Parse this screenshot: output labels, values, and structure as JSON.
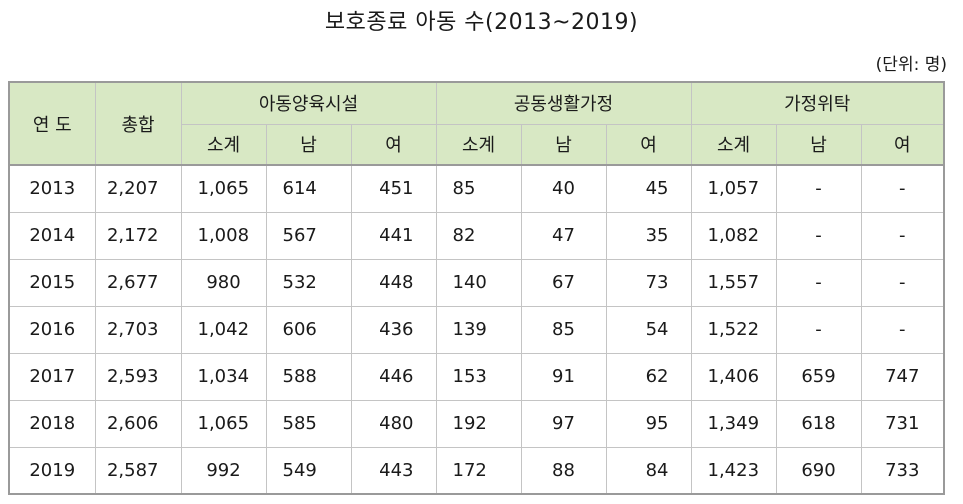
{
  "title": "보호종료 아동 수(2013~2019)",
  "unit": "(단위: 명)",
  "header": {
    "year": "연 도",
    "total": "총합",
    "group1": "아동양육시설",
    "group2": "공동생활가정",
    "group3": "가정위탁",
    "sub_total": "소계",
    "male": "남",
    "female": "여"
  },
  "rows": [
    [
      "2013",
      "2,207",
      "1,065",
      "614",
      "451",
      "85",
      "40",
      "45",
      "1,057",
      "-",
      "-"
    ],
    [
      "2014",
      "2,172",
      "1,008",
      "567",
      "441",
      "82",
      "47",
      "35",
      "1,082",
      "-",
      "-"
    ],
    [
      "2015",
      "2,677",
      "980",
      "532",
      "448",
      "140",
      "67",
      "73",
      "1,557",
      "-",
      "-"
    ],
    [
      "2016",
      "2,703",
      "1,042",
      "606",
      "436",
      "139",
      "85",
      "54",
      "1,522",
      "-",
      "-"
    ],
    [
      "2017",
      "2,593",
      "1,034",
      "588",
      "446",
      "153",
      "91",
      "62",
      "1,406",
      "659",
      "747"
    ],
    [
      "2018",
      "2,606",
      "1,065",
      "585",
      "480",
      "192",
      "97",
      "95",
      "1,349",
      "618",
      "731"
    ],
    [
      "2019",
      "2,587",
      "992",
      "549",
      "443",
      "172",
      "88",
      "84",
      "1,423",
      "690",
      "733"
    ]
  ]
}
